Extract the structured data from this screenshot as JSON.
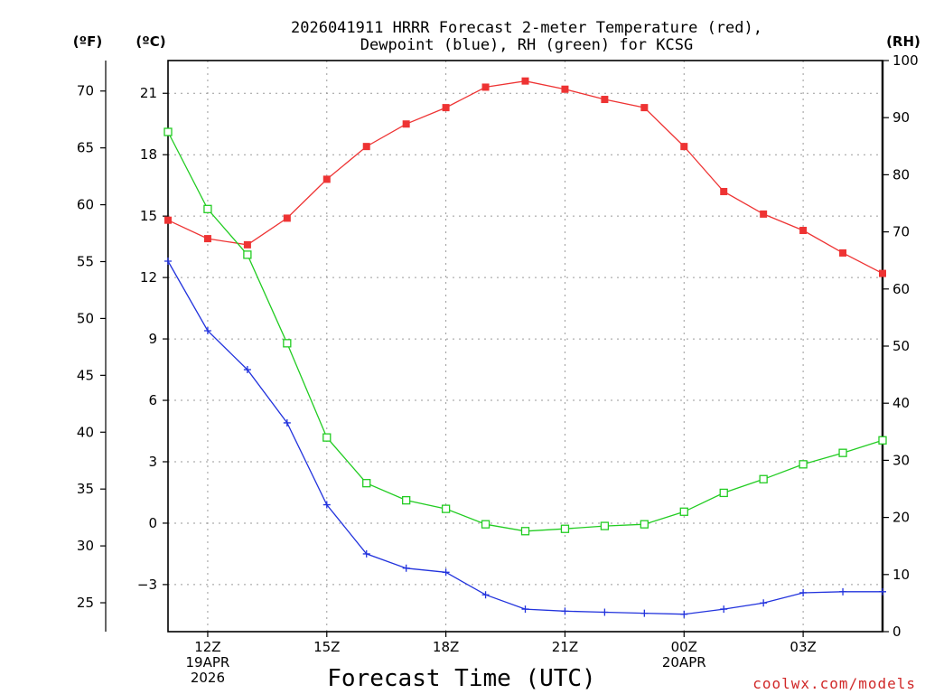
{
  "chart_data": {
    "type": "line",
    "title": [
      "2026041911 HRRR Forecast 2-meter Temperature (red),",
      "Dewpoint (blue), RH (green) for KCSG"
    ],
    "units": {
      "fahrenheit": "(ºF)",
      "celsius": "(ºC)",
      "rh": "(RH)"
    },
    "xlabel": "Forecast Time (UTC)",
    "credit": "coolwx.com/models",
    "x_hours": [
      0,
      1,
      2,
      3,
      4,
      5,
      6,
      7,
      8,
      9,
      10,
      11,
      12,
      13,
      14,
      15,
      16,
      17,
      18
    ],
    "x_range": [
      0,
      18
    ],
    "x_ticks": [
      {
        "hour": 1,
        "lines": [
          "12Z",
          "19APR",
          "2026"
        ]
      },
      {
        "hour": 4,
        "lines": [
          "15Z"
        ]
      },
      {
        "hour": 7,
        "lines": [
          "18Z"
        ]
      },
      {
        "hour": 10,
        "lines": [
          "21Z"
        ]
      },
      {
        "hour": 13,
        "lines": [
          "00Z",
          "20APR"
        ]
      },
      {
        "hour": 16,
        "lines": [
          "03Z"
        ]
      }
    ],
    "celsius_axis": {
      "range": [
        -5.3,
        22.6
      ],
      "ticks": [
        21,
        18,
        15,
        12,
        9,
        6,
        3,
        0,
        -3
      ],
      "tick_labels": [
        "21",
        "18",
        "15",
        "12",
        "9",
        "6",
        "3",
        "0",
        "−3"
      ]
    },
    "fahrenheit_axis": {
      "ticks": [
        70,
        65,
        60,
        55,
        50,
        45,
        40,
        35,
        30,
        25
      ],
      "tick_labels": [
        "70",
        "65",
        "60",
        "55",
        "50",
        "45",
        "40",
        "35",
        "30",
        "25"
      ]
    },
    "rh_axis": {
      "range": [
        0,
        100
      ],
      "ticks": [
        100,
        90,
        80,
        70,
        60,
        50,
        40,
        30,
        20,
        10,
        0
      ],
      "tick_labels": [
        "100",
        "90",
        "80",
        "70",
        "60",
        "50",
        "40",
        "30",
        "20",
        "10",
        "0"
      ]
    },
    "series": [
      {
        "name": "Temperature",
        "axis": "celsius",
        "color": "#ee3333",
        "marker": "filled-square",
        "values": [
          14.8,
          13.9,
          13.6,
          14.9,
          16.8,
          18.4,
          19.5,
          20.3,
          21.3,
          21.6,
          21.2,
          20.7,
          20.3,
          18.4,
          16.2,
          15.1,
          14.3,
          13.2,
          12.2
        ]
      },
      {
        "name": "Dewpoint",
        "axis": "celsius",
        "color": "#2233dd",
        "marker": "plus",
        "values": [
          12.8,
          9.4,
          7.5,
          4.9,
          0.9,
          -1.5,
          -2.2,
          -2.4,
          -3.5,
          -4.2,
          -4.3,
          -4.35,
          -4.4,
          -4.45,
          -4.2,
          -3.9,
          -3.4,
          -3.35,
          -3.35
        ]
      },
      {
        "name": "RH",
        "axis": "rh",
        "color": "#22cc22",
        "marker": "open-square",
        "values": [
          87.5,
          74.0,
          66.0,
          50.5,
          34.0,
          26.0,
          23.0,
          21.5,
          18.8,
          17.6,
          18.0,
          18.5,
          18.8,
          21.0,
          24.3,
          26.7,
          29.3,
          31.3,
          33.5
        ]
      }
    ]
  }
}
